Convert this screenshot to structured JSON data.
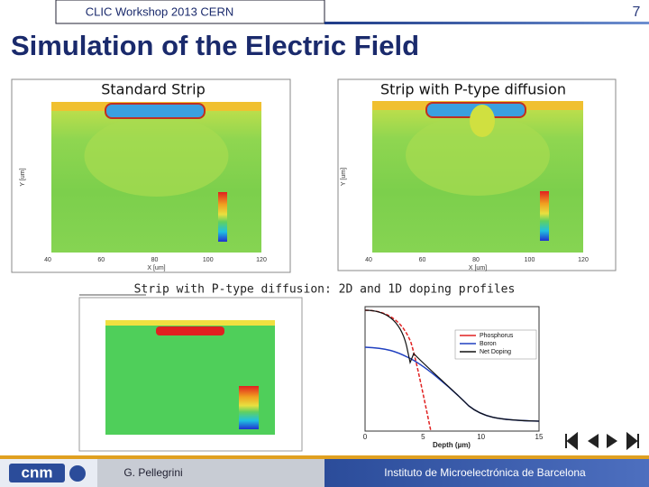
{
  "header": {
    "event": "CLIC Workshop 2013 CERN",
    "page": "7"
  },
  "title": "Simulation of the Electric Field",
  "panels": [
    {
      "caption": "Standard Strip",
      "x_label": "X [um]",
      "y_label": "Y [um]",
      "x_ticks": [
        "40",
        "60",
        "80",
        "100",
        "120"
      ]
    },
    {
      "caption": "Strip with P-type diffusion",
      "x_label": "X [um]",
      "y_label": "Y [um]",
      "x_ticks": [
        "40",
        "60",
        "80",
        "100",
        "120"
      ]
    }
  ],
  "bottom": {
    "caption": "Strip with P-type diffusion: 2D and 1D doping profiles",
    "legend": [
      "Phosphorus",
      "Boron",
      "Net Doping"
    ],
    "x_label": "Depth (µm)",
    "x_ticks": [
      "0",
      "5",
      "10",
      "15"
    ]
  },
  "footer": {
    "logo": "cnm",
    "author": "G. Pellegrini",
    "institute": "Instituto de Microelectrónica de Barcelona"
  }
}
